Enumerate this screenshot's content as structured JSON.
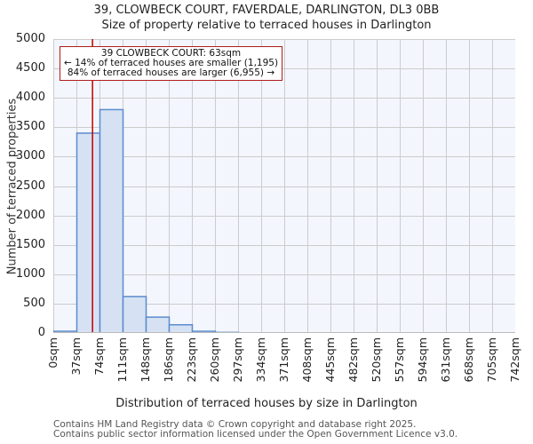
{
  "chart_data": {
    "type": "bar",
    "title": "39, CLOWBECK COURT, FAVERDALE, DARLINGTON, DL3 0BB",
    "subtitle": "Size of property relative to terraced houses in Darlington",
    "xlabel": "Distribution of terraced houses by size in Darlington",
    "ylabel": "Number of terraced properties",
    "ylim": [
      0,
      5000
    ],
    "yticks": [
      "0",
      "500",
      "1000",
      "1500",
      "2000",
      "2500",
      "3000",
      "3500",
      "4000",
      "4500",
      "5000"
    ],
    "categories": [
      "0sqm",
      "37sqm",
      "74sqm",
      "111sqm",
      "148sqm",
      "186sqm",
      "223sqm",
      "260sqm",
      "297sqm",
      "334sqm",
      "371sqm",
      "408sqm",
      "445sqm",
      "482sqm",
      "520sqm",
      "557sqm",
      "594sqm",
      "631sqm",
      "668sqm",
      "705sqm",
      "742sqm"
    ],
    "values": [
      30,
      3400,
      3800,
      620,
      270,
      140,
      30,
      10,
      0,
      0,
      0,
      0,
      0,
      0,
      0,
      0,
      0,
      0,
      0,
      0
    ],
    "grid": true,
    "marker": {
      "value_sqm": 63,
      "color": "#c00000"
    },
    "annotation": {
      "line1": "39 CLOWBECK COURT: 63sqm",
      "line2": "← 14% of terraced houses are smaller (1,195)",
      "line3": "84% of terraced houses are larger (6,955) →"
    },
    "colors": {
      "bar_fill": "#d6e2f4",
      "bar_edge": "#5b8ccc",
      "plot_bg": "#f3f6fd",
      "grid": "#cccccc",
      "marker": "#c00000"
    }
  },
  "footer": {
    "line1": "Contains HM Land Registry data © Crown copyright and database right 2025.",
    "line2": "Contains public sector information licensed under the Open Government Licence v3.0."
  }
}
